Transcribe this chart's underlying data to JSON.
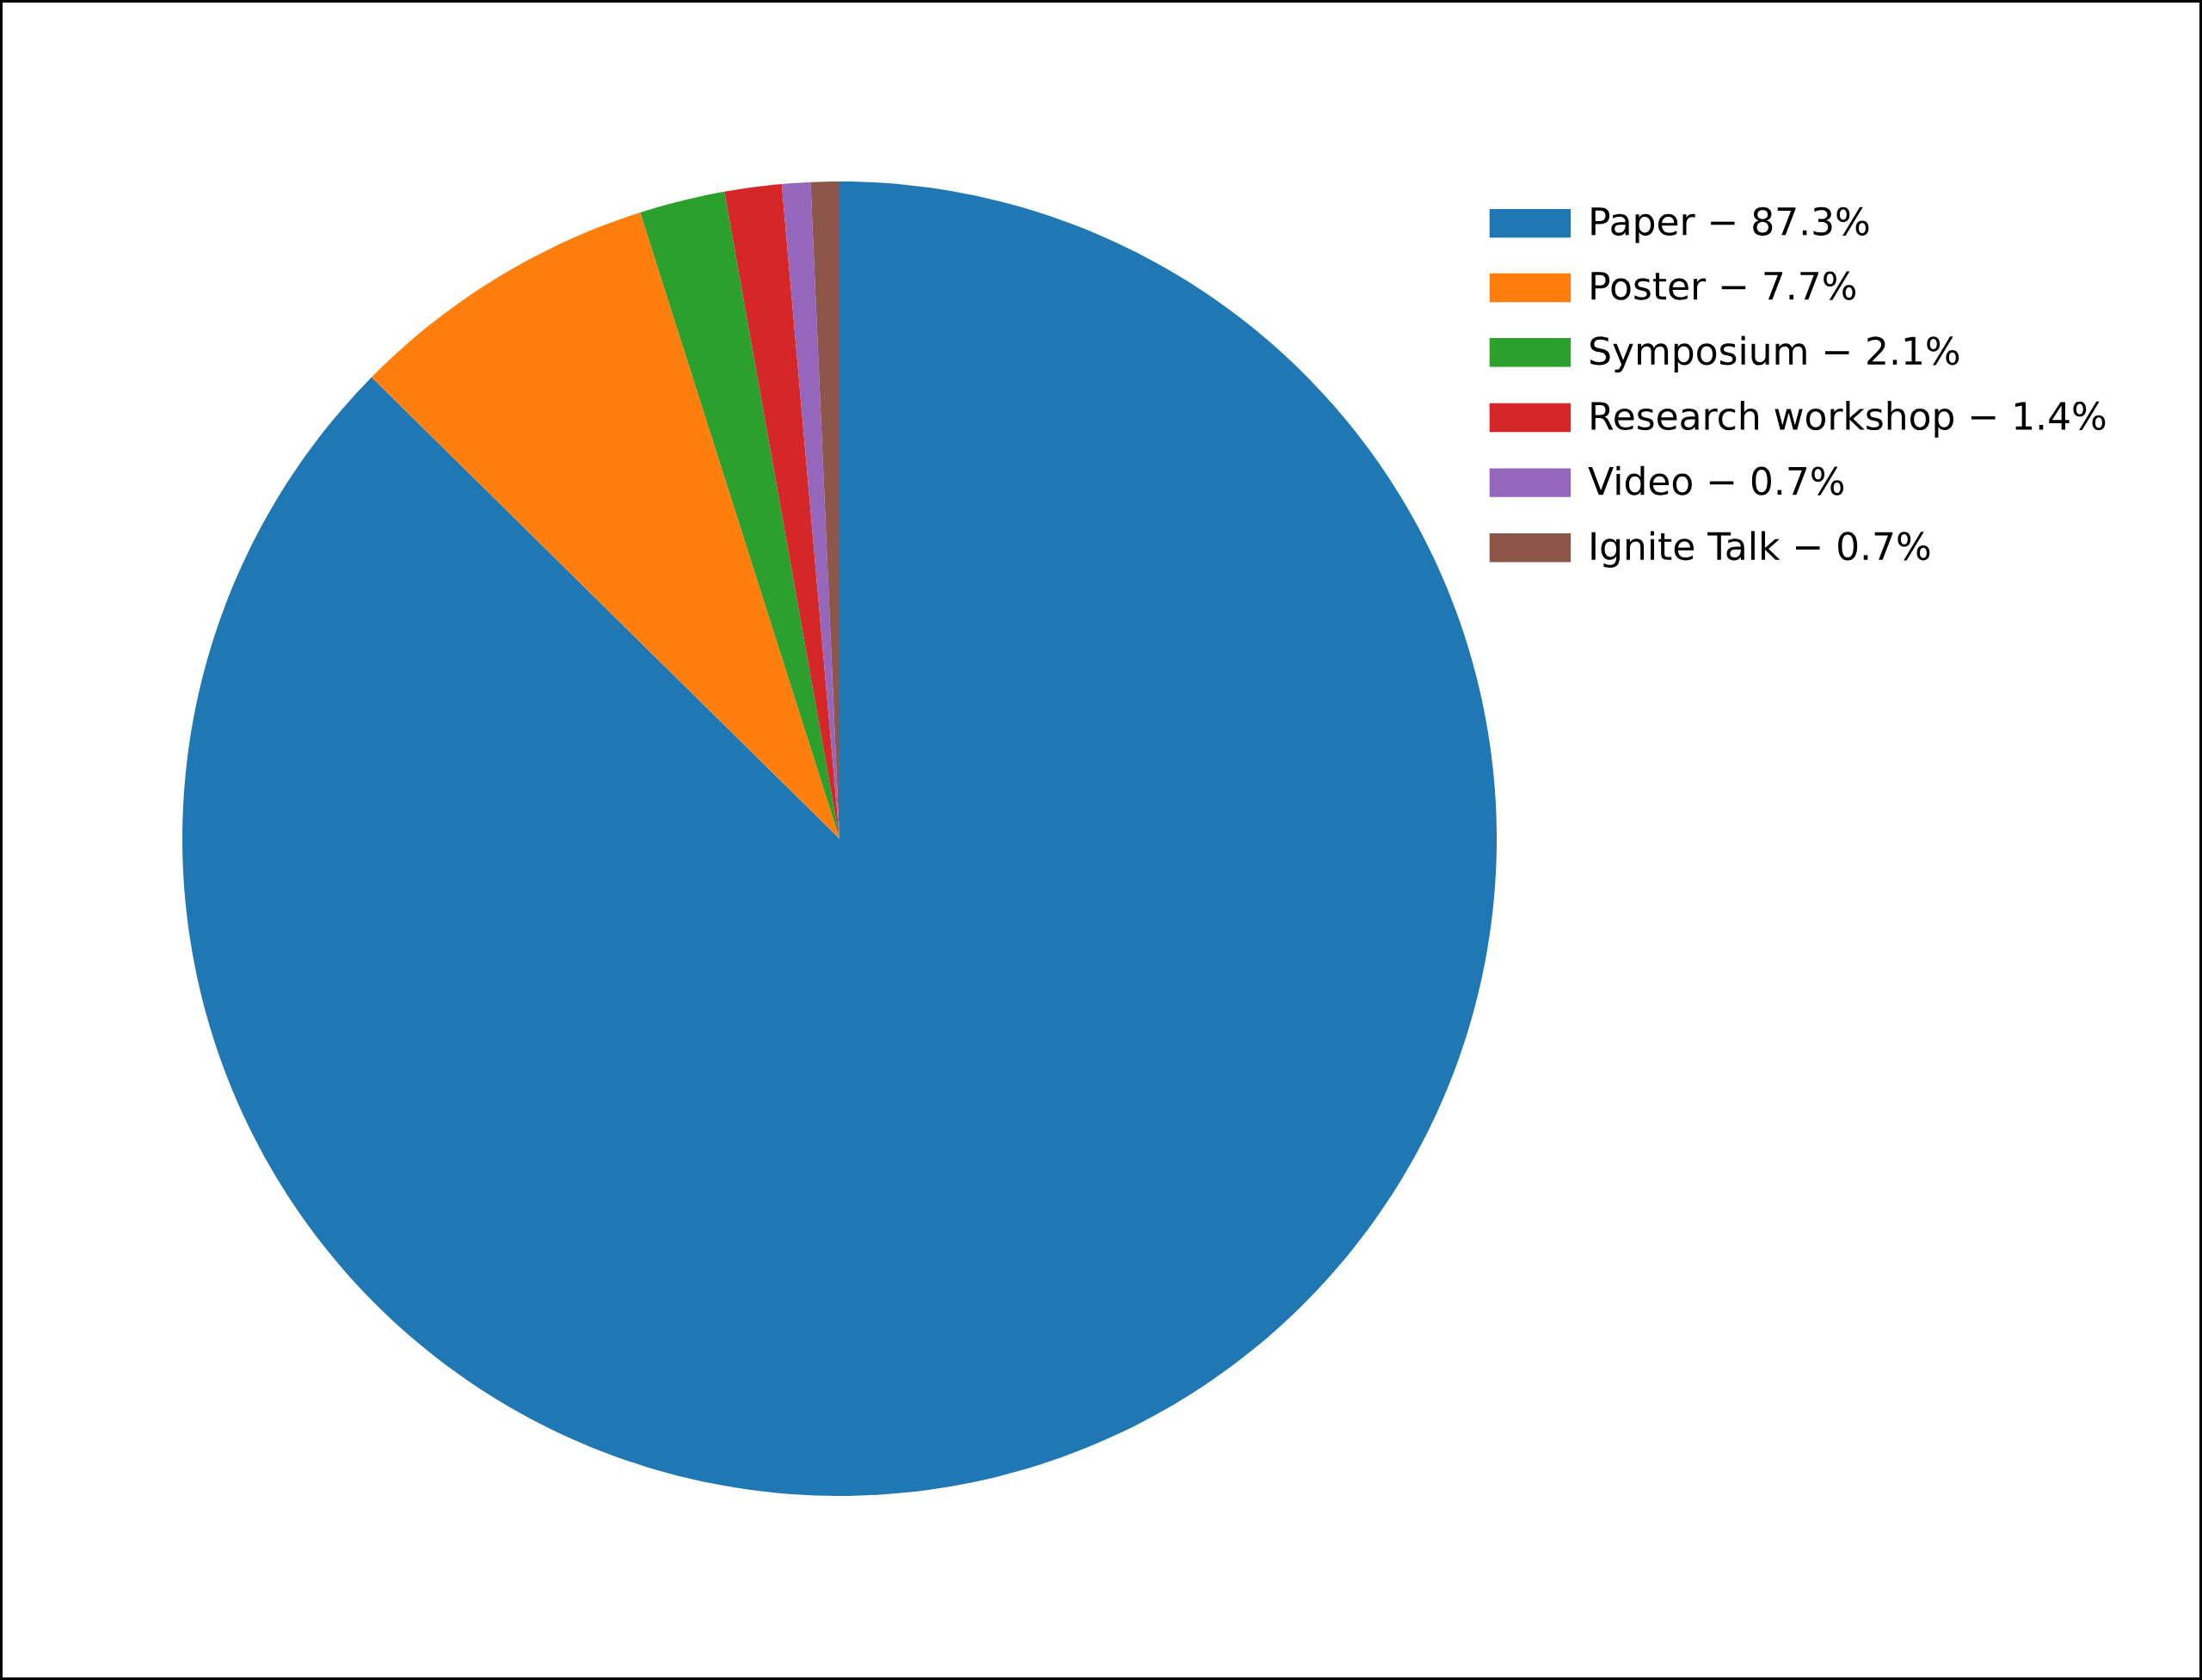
{
  "chart_data": {
    "type": "pie",
    "categories": [
      "Paper − 87.3%",
      "Poster − 7.7%",
      "Symposium − 2.1%",
      "Research workshop − 1.4%",
      "Video − 0.7%",
      "Ignite Talk − 0.7%"
    ],
    "values": [
      87.3,
      7.7,
      2.1,
      1.4,
      0.7,
      0.7
    ],
    "colors": [
      "#1f77b4",
      "#ff7f0e",
      "#2ca02c",
      "#d62728",
      "#9467bd",
      "#8c564b"
    ],
    "legend": "top right"
  }
}
